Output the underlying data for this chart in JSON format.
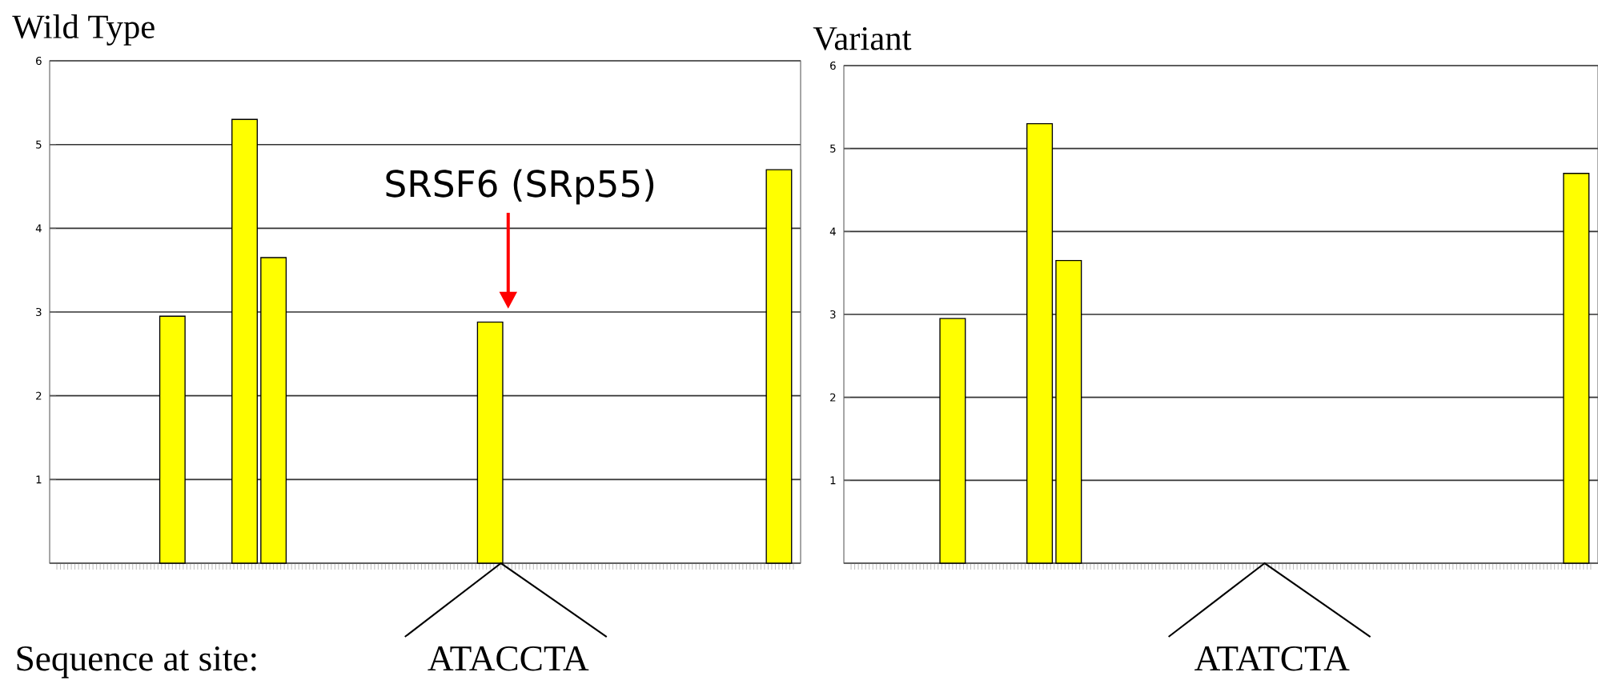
{
  "chart_data": [
    {
      "type": "bar",
      "title": "Wild Type",
      "categories": [
        null,
        null,
        null,
        null,
        null,
        null,
        null,
        null,
        null,
        null,
        null,
        null,
        null,
        null,
        null,
        null,
        null,
        null,
        null,
        null,
        null,
        null,
        null,
        null,
        null,
        null,
        null,
        null,
        null,
        null,
        null,
        null,
        null,
        null,
        null,
        null,
        null,
        null,
        null,
        null,
        null,
        null,
        null,
        null,
        null,
        null,
        null,
        null,
        null,
        null,
        null,
        null
      ],
      "values": [
        null,
        null,
        null,
        null,
        null,
        null,
        null,
        null,
        2.95,
        null,
        null,
        null,
        null,
        5.3,
        null,
        3.65,
        null,
        null,
        null,
        null,
        null,
        null,
        null,
        null,
        null,
        null,
        null,
        null,
        null,
        null,
        2.88,
        null,
        null,
        null,
        null,
        null,
        null,
        null,
        null,
        null,
        null,
        null,
        null,
        null,
        null,
        null,
        null,
        null,
        null,
        null,
        4.7,
        null
      ],
      "color": "#ffff00",
      "ylim": [
        0,
        6
      ],
      "yticks": [
        {
          "value": 0,
          "label": null
        },
        1,
        2,
        3,
        4,
        5,
        6
      ],
      "grid": "y",
      "annotations": [
        "SRSF6 (SRp55)",
        "Sequence at site:",
        "ATACCTA"
      ]
    },
    {
      "type": "bar",
      "title": "Variant",
      "categories": [
        null,
        null,
        null,
        null,
        null,
        null,
        null,
        null,
        null,
        null,
        null,
        null,
        null,
        null,
        null,
        null,
        null,
        null,
        null,
        null,
        null,
        null,
        null,
        null,
        null,
        null,
        null,
        null,
        null,
        null,
        null,
        null,
        null,
        null,
        null,
        null,
        null,
        null,
        null,
        null,
        null,
        null,
        null,
        null,
        null,
        null,
        null,
        null,
        null,
        null,
        null,
        null
      ],
      "values": [
        null,
        null,
        null,
        null,
        null,
        null,
        null,
        2.95,
        null,
        null,
        null,
        null,
        null,
        5.3,
        null,
        3.65,
        null,
        null,
        null,
        null,
        null,
        null,
        null,
        null,
        null,
        null,
        null,
        null,
        null,
        null,
        null,
        null,
        null,
        null,
        null,
        null,
        null,
        null,
        null,
        null,
        null,
        null,
        null,
        null,
        null,
        null,
        null,
        null,
        null,
        null,
        4.7,
        null
      ],
      "color": "#ffff00",
      "ylim": [
        0,
        6
      ],
      "yticks": [
        {
          "value": 0,
          "label": null
        },
        1,
        2,
        3,
        4,
        5,
        6
      ],
      "grid": "y",
      "annotations": [
        "ATATCTA"
      ]
    }
  ]
}
